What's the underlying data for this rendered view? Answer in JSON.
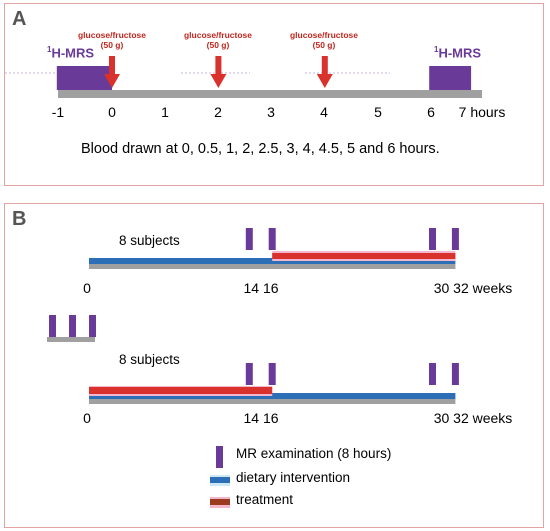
{
  "panel_a": {
    "letter": "A",
    "mrs_label_prefix": "1",
    "mrs_label": "H-MRS",
    "dose_label_line1": "glucose/fructose",
    "dose_label_line2": "(50 g)",
    "dose_times": [
      0,
      2,
      4
    ],
    "mrs_windows": [
      [
        -1,
        0
      ],
      [
        6,
        6.75
      ]
    ],
    "axis_ticks": [
      "-1",
      "0",
      "1",
      "2",
      "3",
      "4",
      "5",
      "6",
      "7 hours"
    ],
    "caption": "Blood drawn at 0, 0.5, 1, 2, 2.5, 3, 4, 4.5, 5 and 6 hours."
  },
  "panel_b": {
    "letter": "B",
    "groups": [
      {
        "subjects_label": "8 subjects",
        "mr_exam_weeks": [
          14,
          16,
          30,
          32
        ],
        "treatment_weeks": [
          16,
          32
        ],
        "axis_ticks": [
          "0",
          "14 16",
          "30 32 weeks"
        ]
      },
      {
        "subjects_label": "8 subjects",
        "mr_exam_weeks": [
          14,
          16,
          30,
          32
        ],
        "treatment_weeks": [
          0,
          16
        ],
        "axis_ticks": [
          "0",
          "14 16",
          "30 32 weeks"
        ]
      }
    ],
    "legend": {
      "mr_exam": "MR examination (8 hours)",
      "diet": "dietary intervention",
      "treatment": "treatment"
    }
  },
  "colors": {
    "purple": "#6a3a98",
    "red": "#d9312b",
    "blue": "#2c6fb7",
    "gray": "#a0a0a0",
    "pink": "#f3b6cd",
    "border": "#e3a3a3"
  }
}
